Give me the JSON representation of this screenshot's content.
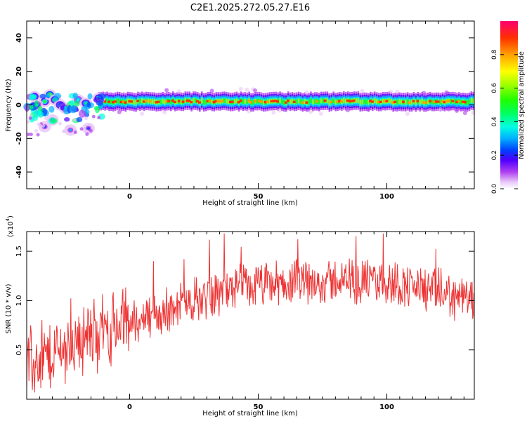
{
  "chart_data": [
    {
      "type": "heatmap",
      "title": "C2E1.2025.272.05.27.E16",
      "xlabel": "Height of straight line (km)",
      "ylabel": "Frequency (Hz)",
      "xlim": [
        -40,
        134
      ],
      "ylim": [
        -50,
        50
      ],
      "x_ticks": [
        0,
        50,
        100
      ],
      "y_ticks": [
        -40,
        -20,
        0,
        20,
        40
      ],
      "colorbar": {
        "label": "Normalized spectral amplitude",
        "range": [
          0,
          1
        ],
        "ticks": [
          0.0,
          0.2,
          0.4,
          0.6,
          0.8
        ]
      },
      "main_band_frequency_hz": 2,
      "early_blobs": [
        {
          "x": -37,
          "y": 5,
          "v": 0.35
        },
        {
          "x": -35,
          "y": -4,
          "v": 0.3
        },
        {
          "x": -33,
          "y": 2,
          "v": 0.4
        },
        {
          "x": -31,
          "y": 6,
          "v": 0.5
        },
        {
          "x": -29,
          "y": 3,
          "v": 0.45
        },
        {
          "x": -27,
          "y": 0,
          "v": 0.35
        },
        {
          "x": -25,
          "y": -2,
          "v": 0.3
        },
        {
          "x": -36,
          "y": 0,
          "v": 0.25
        },
        {
          "x": -23,
          "y": -15,
          "v": 0.15
        },
        {
          "x": -33,
          "y": -13,
          "v": 0.12
        },
        {
          "x": -16,
          "y": -14,
          "v": 0.12
        },
        {
          "x": -30,
          "y": -9,
          "v": 0.1
        },
        {
          "x": -20,
          "y": 3,
          "v": 0.3
        },
        {
          "x": -17,
          "y": 1,
          "v": 0.35
        },
        {
          "x": -12,
          "y": 4,
          "v": 0.4
        }
      ]
    },
    {
      "type": "line",
      "xlabel": "Height of straight line (km)",
      "ylabel": "SNR (10 * v/v)",
      "y_scale_note": "(x10",
      "y_scale_exp": "4",
      "xlim": [
        -40,
        134
      ],
      "ylim": [
        0,
        1.7
      ],
      "x_ticks": [
        0,
        50,
        100
      ],
      "y_ticks": [
        0.5,
        1.0,
        1.5
      ],
      "series": [
        {
          "color": "#ee3333",
          "profile_x": [
            -40,
            -30,
            -20,
            -10,
            0,
            10,
            20,
            30,
            40,
            50,
            60,
            70,
            80,
            90,
            100,
            110,
            120,
            134
          ],
          "profile_y": [
            0.3,
            0.45,
            0.6,
            0.7,
            0.78,
            0.85,
            0.95,
            1.05,
            1.12,
            1.15,
            1.17,
            1.18,
            1.2,
            1.2,
            1.18,
            1.15,
            1.08,
            1.0
          ]
        }
      ]
    }
  ]
}
